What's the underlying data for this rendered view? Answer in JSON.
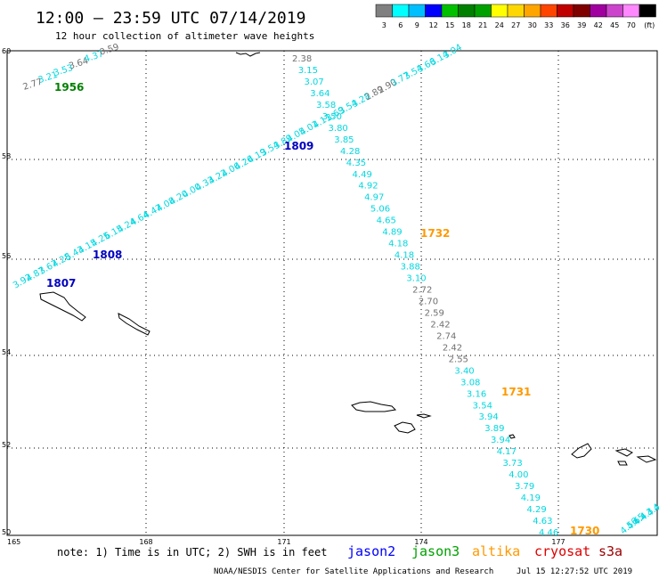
{
  "header": {
    "title": "12:00 – 23:59 UTC 07/14/2019",
    "subtitle": "12 hour collection of altimeter wave heights"
  },
  "legend": {
    "colors": [
      "#808080",
      "#00ffff",
      "#00bfff",
      "#0000ff",
      "#00c000",
      "#008000",
      "#00a000",
      "#ffff00",
      "#ffd700",
      "#ffa500",
      "#ff4500",
      "#c00000",
      "#800000",
      "#a000a0",
      "#cc44cc",
      "#ff88ff",
      "#000000"
    ],
    "labels": [
      "3",
      "6",
      "9",
      "12",
      "15",
      "18",
      "21",
      "24",
      "27",
      "30",
      "33",
      "36",
      "39",
      "42",
      "45",
      "70",
      "(ft)"
    ]
  },
  "axes": {
    "lat_labels": [
      "60",
      "58",
      "56",
      "54",
      "52",
      "50"
    ],
    "lon_labels": [
      "165",
      "168",
      "171",
      "174",
      "177"
    ]
  },
  "passes": [
    {
      "id": "1956",
      "color": "#008000"
    },
    {
      "id": "1809",
      "color": "#0000c0"
    },
    {
      "id": "1808",
      "color": "#0000c0"
    },
    {
      "id": "1807",
      "color": "#0000c0"
    },
    {
      "id": "1732",
      "color": "#ff9900"
    },
    {
      "id": "1731",
      "color": "#ff9900"
    },
    {
      "id": "1730",
      "color": "#ff9900"
    }
  ],
  "track_jason2_sw_to_ne": {
    "color_cyan": "#00d8e0",
    "color_gray": "#707070",
    "values": [
      "3.92",
      "4.87",
      "3.67",
      "4.28",
      "5.43",
      "4.15",
      "4.25",
      "6.15",
      "4.24",
      "4.64",
      "4.47",
      "4.08",
      "4.20",
      "4.00",
      "4.33",
      "4.22",
      "4.06",
      "4.26",
      "4.19",
      "3.54",
      "3.89",
      "4.05",
      "4.01",
      "4.11",
      "3.69",
      "3.54",
      "3.28",
      "2.89",
      "2.90",
      "3.77",
      "3.54",
      "3.66",
      "3.14",
      "3.04"
    ]
  },
  "track_topleft": {
    "values": [
      "2.77",
      "3.21",
      "3.53",
      "3.64",
      "4.37",
      "0.59"
    ]
  },
  "track_altika_desc": {
    "values": [
      "2.38",
      "3.15",
      "3.07",
      "3.64",
      "3.58",
      "3.50",
      "3.80",
      "3.85",
      "4.28",
      "4.35",
      "4.49",
      "4.92",
      "4.97",
      "5.06",
      "4.65",
      "4.89",
      "4.18",
      "4.18",
      "3.88",
      "3.10",
      "2.72",
      "2.70",
      "2.59",
      "2.42",
      "2.74",
      "2.42",
      "2.55",
      "3.40",
      "3.08",
      "3.16",
      "3.54",
      "3.94",
      "3.89",
      "3.94",
      "4.17",
      "3.73",
      "4.00",
      "3.79",
      "4.19",
      "4.29",
      "4.63",
      "4.46"
    ]
  },
  "track_bottom_right": {
    "values": [
      "4.56",
      "4.65",
      "4.4",
      "4.3",
      "4.4",
      "4.2"
    ]
  },
  "notes": {
    "note_text": "note: 1) Time is in UTC; 2) SWH is in feet",
    "satellites": [
      {
        "name": "jason2",
        "color": "#0000ff"
      },
      {
        "name": "jason3",
        "color": "#00a000"
      },
      {
        "name": "altika",
        "color": "#ff9900"
      },
      {
        "name": "cryosat",
        "color": "#dd0000"
      },
      {
        "name": "s3a",
        "color": "#990000"
      }
    ],
    "credit": "NOAA/NESDIS Center for Satellite Applications and Research",
    "timestamp": "Jul 15 12:27:52 UTC 2019"
  }
}
